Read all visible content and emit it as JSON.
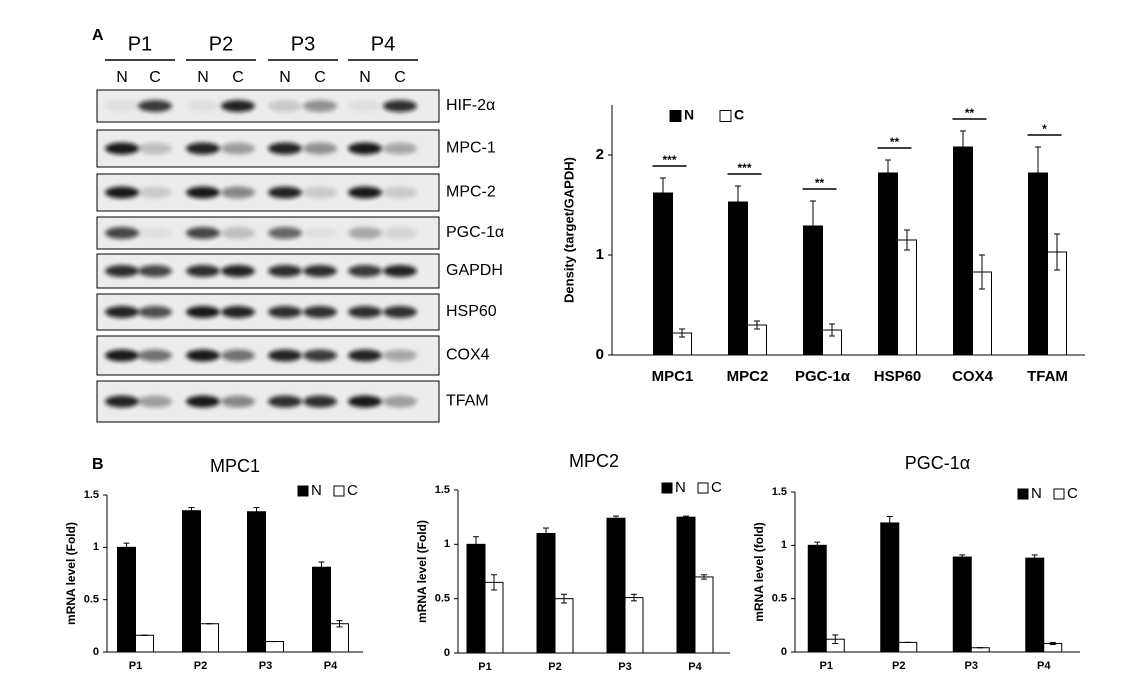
{
  "panel_labels": [
    "A",
    "B"
  ],
  "blot": {
    "groups": [
      "P1",
      "P2",
      "P3",
      "P4"
    ],
    "lanes": [
      "N",
      "C",
      "N",
      "C",
      "N",
      "C",
      "N",
      "C"
    ],
    "proteins": [
      "HIF-2α",
      "MPC-1",
      "MPC-2",
      "PGC-1α",
      "GAPDH",
      "HSP60",
      "COX4",
      "TFAM"
    ]
  },
  "chart_data": [
    {
      "type": "bar",
      "ylabel": "Density (target/GAPDH)",
      "categories": [
        "MPC1",
        "MPC2",
        "PGC-1α",
        "HSP60",
        "COX4",
        "TFAM"
      ],
      "series": [
        {
          "name": "N",
          "color": "#000000",
          "values": [
            1.62,
            1.53,
            1.29,
            1.82,
            2.08,
            1.82
          ],
          "errors": [
            0.15,
            0.16,
            0.25,
            0.13,
            0.16,
            0.26
          ]
        },
        {
          "name": "C",
          "color": "#ffffff",
          "values": [
            0.22,
            0.3,
            0.25,
            1.15,
            0.83,
            1.03
          ],
          "errors": [
            0.04,
            0.04,
            0.06,
            0.1,
            0.17,
            0.18
          ]
        }
      ],
      "annotations": [
        "***",
        "***",
        "**",
        "**",
        "**",
        "*"
      ],
      "ylim": [
        0,
        2.5
      ],
      "yticks": [
        0,
        1,
        2
      ],
      "legend": "upper left"
    },
    {
      "type": "bar",
      "title": "MPC1",
      "ylabel": "mRNA level (Fold)",
      "categories": [
        "P1",
        "P2",
        "P3",
        "P4"
      ],
      "series": [
        {
          "name": "N",
          "color": "#000000",
          "values": [
            1.0,
            1.35,
            1.34,
            0.81
          ],
          "errors": [
            0.04,
            0.03,
            0.04,
            0.05
          ]
        },
        {
          "name": "C",
          "color": "#ffffff",
          "values": [
            0.16,
            0.27,
            0.1,
            0.27
          ],
          "errors": [
            0,
            0,
            0,
            0.03
          ]
        }
      ],
      "ylim": [
        0,
        1.5
      ],
      "yticks": [
        0,
        0.5,
        1,
        1.5
      ],
      "legend": "upper right"
    },
    {
      "type": "bar",
      "title": "MPC2",
      "ylabel": "mRNA level (Fold)",
      "categories": [
        "P1",
        "P2",
        "P3",
        "P4"
      ],
      "series": [
        {
          "name": "N",
          "color": "#000000",
          "values": [
            1.0,
            1.1,
            1.24,
            1.25
          ],
          "errors": [
            0.07,
            0.05,
            0.02,
            0.01
          ]
        },
        {
          "name": "C",
          "color": "#ffffff",
          "values": [
            0.65,
            0.5,
            0.51,
            0.7
          ],
          "errors": [
            0.07,
            0.04,
            0.03,
            0.02
          ]
        }
      ],
      "ylim": [
        0,
        1.5
      ],
      "yticks": [
        0,
        0.5,
        1,
        1.5
      ],
      "legend": "upper right"
    },
    {
      "type": "bar",
      "title": "PGC-1α",
      "ylabel": "mRNA level (fold)",
      "categories": [
        "P1",
        "P2",
        "P3",
        "P4"
      ],
      "series": [
        {
          "name": "N",
          "color": "#000000",
          "values": [
            1.0,
            1.21,
            0.89,
            0.88
          ],
          "errors": [
            0.03,
            0.06,
            0.02,
            0.03
          ]
        },
        {
          "name": "C",
          "color": "#ffffff",
          "values": [
            0.12,
            0.09,
            0.04,
            0.08
          ],
          "errors": [
            0.04,
            0,
            0,
            0.01
          ]
        }
      ],
      "ylim": [
        0,
        1.5
      ],
      "yticks": [
        0,
        0.5,
        1,
        1.5
      ],
      "legend": "upper right"
    }
  ]
}
